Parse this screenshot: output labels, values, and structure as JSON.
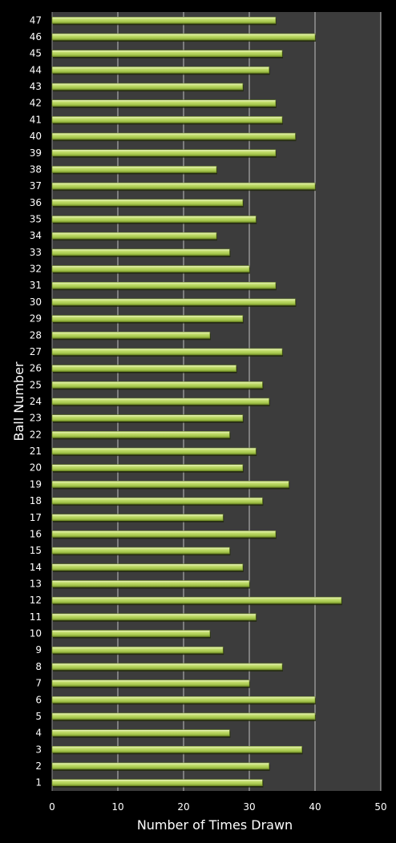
{
  "chart_data": {
    "type": "bar",
    "orientation": "horizontal",
    "xlabel": "Number of Times Drawn",
    "ylabel": "Ball Number",
    "xlim": [
      0,
      50
    ],
    "xticks": [
      "0",
      "10",
      "20",
      "30",
      "40",
      "50"
    ],
    "grid": true,
    "categories": [
      "1",
      "2",
      "3",
      "4",
      "5",
      "6",
      "7",
      "8",
      "9",
      "10",
      "11",
      "12",
      "13",
      "14",
      "15",
      "16",
      "17",
      "18",
      "19",
      "20",
      "21",
      "22",
      "23",
      "24",
      "25",
      "26",
      "27",
      "28",
      "29",
      "30",
      "31",
      "32",
      "33",
      "34",
      "35",
      "36",
      "37",
      "38",
      "39",
      "40",
      "41",
      "42",
      "43",
      "44",
      "45",
      "46",
      "47"
    ],
    "values": [
      32,
      33,
      38,
      27,
      40,
      40,
      30,
      35,
      26,
      24,
      31,
      44,
      30,
      29,
      27,
      34,
      26,
      32,
      36,
      29,
      31,
      27,
      29,
      33,
      32,
      28,
      35,
      24,
      29,
      37,
      34,
      30,
      27,
      25,
      31,
      29,
      40,
      25,
      34,
      37,
      35,
      34,
      29,
      33,
      35,
      40,
      34
    ],
    "colors": {
      "background": "#000000",
      "plot_area": "#3c3c3c",
      "gridline": "#bfbfbf",
      "bar": "#b5d55c",
      "bar_highlight": "#e6f2b0",
      "bar_shadow": "#6f8a25",
      "text": "#ffffff"
    }
  }
}
